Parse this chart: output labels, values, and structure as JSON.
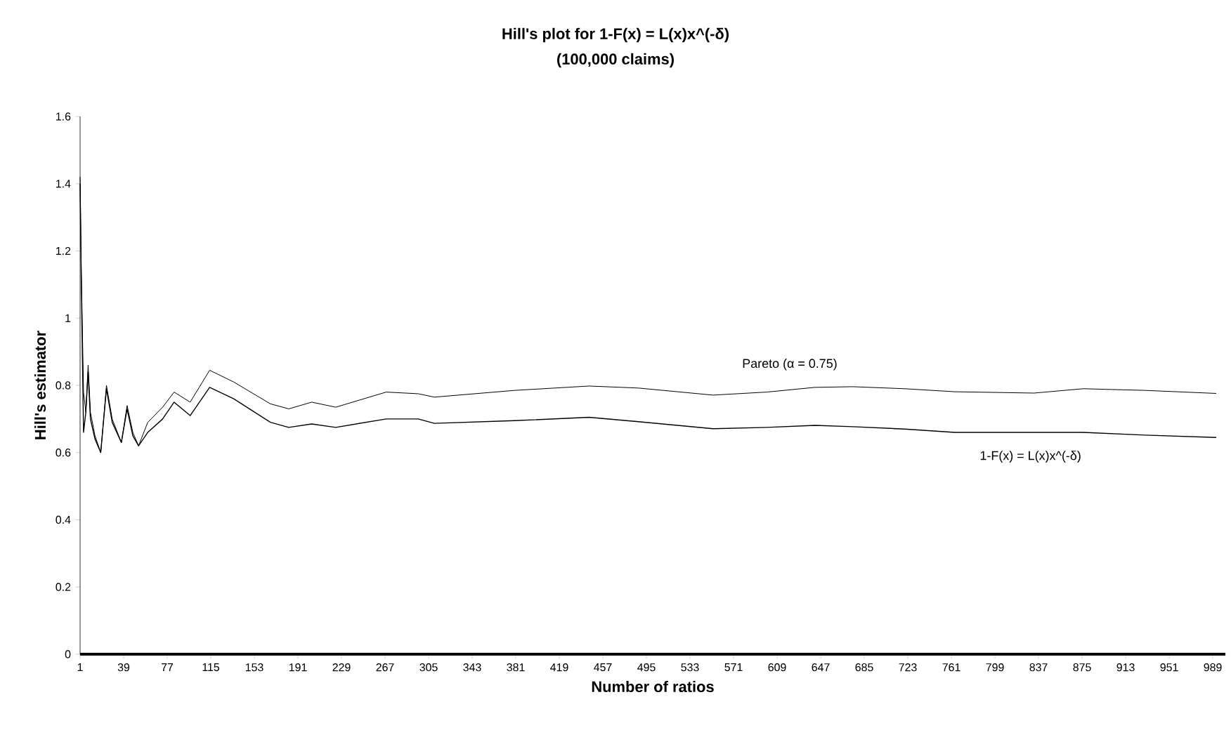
{
  "chart_data": {
    "type": "line",
    "title": "Hill's plot for 1-F(x) = L(x)x^(-δ)",
    "subtitle": "(100,000 claims)",
    "xlabel": "Number of ratios",
    "ylabel": "Hill's estimator",
    "xlim": [
      1,
      1000
    ],
    "xticks": [
      1,
      39,
      77,
      115,
      153,
      191,
      229,
      267,
      305,
      343,
      381,
      419,
      457,
      495,
      533,
      571,
      609,
      647,
      685,
      723,
      761,
      799,
      837,
      875,
      913,
      951,
      989
    ],
    "ylim": [
      0,
      1.6
    ],
    "yticks": [
      0,
      0.2,
      0.4,
      0.6,
      0.8,
      1,
      1.2,
      1.4,
      1.6
    ],
    "grid": false,
    "line_style": "solid",
    "series": [
      {
        "name": "Pareto (α = 0.75)",
        "color": "#000000",
        "x": [
          1,
          2,
          4,
          6,
          8,
          10,
          14,
          19,
          24,
          29,
          37,
          42,
          47,
          52,
          60,
          73,
          83,
          97,
          114,
          135,
          167,
          183,
          203,
          224,
          268,
          296,
          310,
          380,
          445,
          488,
          553,
          600,
          642,
          675,
          720,
          764,
          833,
          876,
          930,
          992
        ],
        "values": [
          1.42,
          1.15,
          0.78,
          0.72,
          0.86,
          0.72,
          0.65,
          0.6,
          0.8,
          0.7,
          0.63,
          0.74,
          0.66,
          0.62,
          0.69,
          0.735,
          0.78,
          0.75,
          0.845,
          0.81,
          0.745,
          0.73,
          0.75,
          0.735,
          0.78,
          0.775,
          0.765,
          0.785,
          0.798,
          0.792,
          0.771,
          0.78,
          0.794,
          0.796,
          0.79,
          0.781,
          0.777,
          0.79,
          0.785,
          0.776
        ]
      },
      {
        "name": "1-F(x) = L(x)x^(-δ)",
        "color": "#000000",
        "x": [
          1,
          2,
          4,
          6,
          8,
          10,
          14,
          19,
          24,
          29,
          37,
          42,
          47,
          52,
          60,
          73,
          83,
          97,
          114,
          135,
          167,
          183,
          203,
          224,
          268,
          296,
          310,
          380,
          445,
          488,
          553,
          600,
          642,
          675,
          720,
          764,
          833,
          876,
          930,
          992
        ],
        "values": [
          1.4,
          1.12,
          0.66,
          0.72,
          0.84,
          0.7,
          0.64,
          0.6,
          0.79,
          0.69,
          0.63,
          0.73,
          0.65,
          0.62,
          0.66,
          0.7,
          0.75,
          0.71,
          0.794,
          0.76,
          0.69,
          0.675,
          0.685,
          0.675,
          0.7,
          0.7,
          0.687,
          0.695,
          0.705,
          0.692,
          0.671,
          0.675,
          0.681,
          0.677,
          0.67,
          0.66,
          0.66,
          0.66,
          0.652,
          0.645
        ]
      }
    ]
  }
}
